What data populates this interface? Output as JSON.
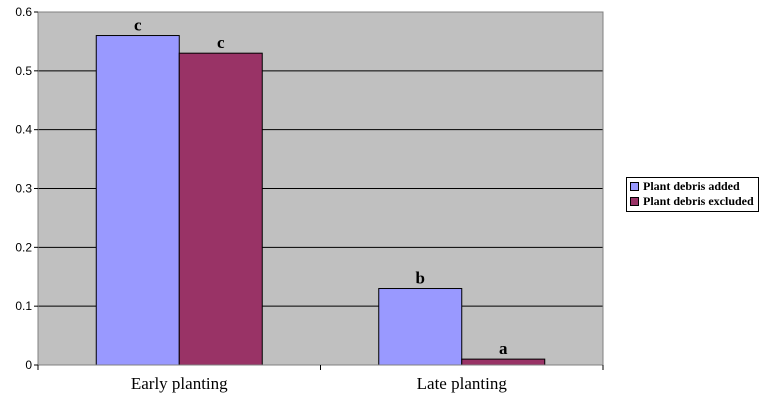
{
  "chart_data": {
    "type": "bar",
    "title": "",
    "xlabel": "",
    "ylabel": "",
    "categories": [
      "Early planting",
      "Late planting"
    ],
    "ylim": [
      0,
      0.6
    ],
    "yticks": [
      "0",
      "0.1",
      "0.2",
      "0.3",
      "0.4",
      "0.5",
      "0.6"
    ],
    "grid": true,
    "legend_position": "right",
    "plot_background": "#c0c0c0",
    "series": [
      {
        "name": "Plant debris added",
        "color": "#9999ff",
        "values": [
          0.56,
          0.13
        ],
        "labels": [
          "c",
          "b"
        ]
      },
      {
        "name": "Plant debris excluded",
        "color": "#993366",
        "values": [
          0.53,
          0.01
        ],
        "labels": [
          "c",
          "a"
        ]
      }
    ]
  }
}
